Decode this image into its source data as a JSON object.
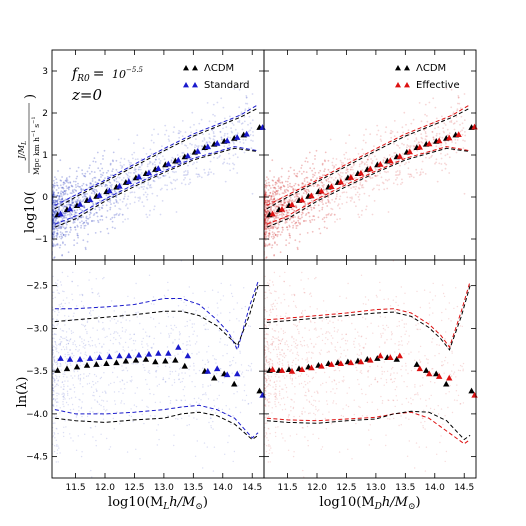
{
  "annotation": {
    "fr0_label": "f",
    "fr0_sub": "R0",
    "fr0_eq": "=",
    "fr0_value": "10",
    "fr0_exp": "−5.5",
    "z_label": "z=0"
  },
  "xlabels": {
    "left": "log10(M",
    "left_sub": "L",
    "left_rest": "h/M",
    "left_sun": "⊙",
    "left_close": ")",
    "right": "log10(M",
    "right_sub": "D",
    "right_rest": "h/M",
    "right_sun": "⊙",
    "right_close": ")"
  },
  "ylabels": {
    "top_prefix": "log10(",
    "top_num": "J/M",
    "top_num_sub": "L",
    "top_den": "Mpc km h",
    "top_den_exp": "−1",
    "top_den_s": "s",
    "top_den_s_exp": "−1",
    "top_suffix": ")",
    "bottom": "ln(λ)"
  },
  "chart_data": [
    {
      "id": "top-left",
      "type": "scatter",
      "xlim": [
        11.1,
        14.7
      ],
      "ylim": [
        -1.5,
        3.5
      ],
      "xticks": [
        11.5,
        12.0,
        12.5,
        13.0,
        13.5,
        14.0,
        14.5
      ],
      "yticks": [
        -1,
        0,
        1,
        2,
        3
      ],
      "ytick_labels": [
        "−1",
        "0",
        "1",
        "2",
        "3"
      ],
      "legend": [
        {
          "label": "ΛCDM",
          "color": "#000000"
        },
        {
          "label": "Standard",
          "color": "#1a1acc"
        }
      ],
      "cloud_color": "#2233bb",
      "series": [
        {
          "name": "ΛCDM",
          "color": "#000000",
          "x": [
            11.22,
            11.38,
            11.55,
            11.72,
            11.88,
            12.05,
            12.22,
            12.38,
            12.55,
            12.72,
            12.88,
            13.05,
            13.22,
            13.38,
            13.55,
            13.72,
            13.88,
            14.05,
            14.22,
            14.38,
            14.65
          ],
          "y": [
            -0.42,
            -0.3,
            -0.2,
            -0.08,
            0.02,
            0.13,
            0.24,
            0.35,
            0.46,
            0.56,
            0.66,
            0.77,
            0.86,
            0.96,
            1.07,
            1.18,
            1.26,
            1.33,
            1.4,
            1.48,
            1.66
          ]
        },
        {
          "name": "Standard",
          "color": "#1a1acc",
          "x": [
            11.22,
            11.38,
            11.55,
            11.72,
            11.88,
            12.05,
            12.22,
            12.38,
            12.55,
            12.72,
            12.88,
            13.05,
            13.22,
            13.38,
            13.55,
            13.72,
            13.88,
            14.05,
            14.22,
            14.38,
            14.65
          ],
          "y": [
            -0.4,
            -0.28,
            -0.17,
            -0.06,
            0.04,
            0.15,
            0.26,
            0.37,
            0.48,
            0.58,
            0.68,
            0.79,
            0.88,
            0.98,
            1.09,
            1.2,
            1.28,
            1.34,
            1.42,
            1.5,
            1.66
          ]
        }
      ],
      "bands": [
        {
          "color": "#1a1acc",
          "x": [
            11.15,
            11.5,
            12.0,
            12.5,
            13.0,
            13.5,
            14.0,
            14.3,
            14.6
          ],
          "y": [
            -0.2,
            0.05,
            0.4,
            0.78,
            1.15,
            1.5,
            1.78,
            1.95,
            2.2
          ]
        },
        {
          "color": "#000000",
          "x": [
            11.15,
            11.5,
            12.0,
            12.5,
            13.0,
            13.5,
            14.0,
            14.3,
            14.6
          ],
          "y": [
            -0.28,
            0.0,
            0.36,
            0.73,
            1.1,
            1.45,
            1.73,
            1.9,
            2.12
          ]
        },
        {
          "color": "#1a1acc",
          "x": [
            11.15,
            11.5,
            12.0,
            12.5,
            13.0,
            13.5,
            14.0,
            14.2,
            14.6
          ],
          "y": [
            -0.65,
            -0.45,
            -0.05,
            0.3,
            0.62,
            0.92,
            1.12,
            1.2,
            1.1
          ]
        },
        {
          "color": "#000000",
          "x": [
            11.15,
            11.5,
            12.0,
            12.5,
            13.0,
            13.5,
            14.0,
            14.2,
            14.6
          ],
          "y": [
            -0.72,
            -0.52,
            -0.1,
            0.25,
            0.58,
            0.88,
            1.08,
            1.16,
            1.08
          ]
        }
      ]
    },
    {
      "id": "top-right",
      "type": "scatter",
      "xlim": [
        11.1,
        14.7
      ],
      "ylim": [
        -1.5,
        3.5
      ],
      "xticks": [
        11.5,
        12.0,
        12.5,
        13.0,
        13.5,
        14.0,
        14.5
      ],
      "yticks": [
        -1,
        0,
        1,
        2,
        3
      ],
      "legend": [
        {
          "label": "ΛCDM",
          "color": "#000000"
        },
        {
          "label": "Effective",
          "color": "#dd1111"
        }
      ],
      "cloud_color": "#cc2222",
      "series": [
        {
          "name": "ΛCDM",
          "color": "#000000",
          "x": [
            11.22,
            11.38,
            11.55,
            11.72,
            11.88,
            12.05,
            12.22,
            12.38,
            12.55,
            12.72,
            12.88,
            13.05,
            13.22,
            13.38,
            13.55,
            13.72,
            13.88,
            14.05,
            14.22,
            14.38,
            14.65
          ],
          "y": [
            -0.42,
            -0.3,
            -0.2,
            -0.08,
            0.02,
            0.13,
            0.24,
            0.35,
            0.46,
            0.56,
            0.66,
            0.77,
            0.86,
            0.96,
            1.07,
            1.18,
            1.26,
            1.33,
            1.4,
            1.48,
            1.66
          ]
        },
        {
          "name": "Effective",
          "color": "#dd1111",
          "x": [
            11.22,
            11.38,
            11.55,
            11.72,
            11.88,
            12.05,
            12.22,
            12.38,
            12.55,
            12.72,
            12.88,
            13.05,
            13.22,
            13.38,
            13.55,
            13.72,
            13.88,
            14.05,
            14.22,
            14.38,
            14.65
          ],
          "y": [
            -0.4,
            -0.29,
            -0.18,
            -0.07,
            0.03,
            0.14,
            0.25,
            0.36,
            0.47,
            0.57,
            0.67,
            0.78,
            0.87,
            0.97,
            1.08,
            1.19,
            1.27,
            1.34,
            1.41,
            1.49,
            1.67
          ]
        }
      ],
      "bands": [
        {
          "color": "#dd1111",
          "x": [
            11.15,
            11.5,
            12.0,
            12.5,
            13.0,
            13.5,
            14.0,
            14.3,
            14.6
          ],
          "y": [
            -0.2,
            0.05,
            0.4,
            0.78,
            1.15,
            1.5,
            1.78,
            1.95,
            2.2
          ]
        },
        {
          "color": "#000000",
          "x": [
            11.15,
            11.5,
            12.0,
            12.5,
            13.0,
            13.5,
            14.0,
            14.3,
            14.6
          ],
          "y": [
            -0.28,
            0.0,
            0.36,
            0.73,
            1.1,
            1.45,
            1.73,
            1.9,
            2.12
          ]
        },
        {
          "color": "#dd1111",
          "x": [
            11.15,
            11.5,
            12.0,
            12.5,
            13.0,
            13.5,
            14.0,
            14.2,
            14.6
          ],
          "y": [
            -0.65,
            -0.45,
            -0.05,
            0.3,
            0.62,
            0.92,
            1.12,
            1.2,
            1.1
          ]
        },
        {
          "color": "#000000",
          "x": [
            11.15,
            11.5,
            12.0,
            12.5,
            13.0,
            13.5,
            14.0,
            14.2,
            14.6
          ],
          "y": [
            -0.72,
            -0.52,
            -0.1,
            0.25,
            0.58,
            0.88,
            1.08,
            1.16,
            1.08
          ]
        }
      ]
    },
    {
      "id": "bottom-left",
      "type": "scatter",
      "xlim": [
        11.1,
        14.7
      ],
      "ylim": [
        -4.75,
        -2.2
      ],
      "xticks": [
        11.5,
        12.0,
        12.5,
        13.0,
        13.5,
        14.0,
        14.5
      ],
      "xtick_labels": [
        "11.5",
        "12.0",
        "12.5",
        "13.0",
        "13.5",
        "14.0",
        "14.5"
      ],
      "yticks": [
        -4.5,
        -4.0,
        -3.5,
        -3.0,
        -2.5
      ],
      "ytick_labels": [
        "−4.5",
        "−4.0",
        "−3.5",
        "−3.0",
        "−2.5"
      ],
      "cloud_color": "#2233bb",
      "series": [
        {
          "name": "ΛCDM",
          "color": "#000000",
          "x": [
            11.22,
            11.38,
            11.55,
            11.72,
            11.88,
            12.05,
            12.22,
            12.38,
            12.55,
            12.72,
            12.88,
            13.05,
            13.22,
            13.38,
            13.72,
            13.88,
            14.05,
            14.22,
            14.65
          ],
          "y": [
            -3.49,
            -3.47,
            -3.45,
            -3.43,
            -3.42,
            -3.41,
            -3.4,
            -3.38,
            -3.37,
            -3.36,
            -3.39,
            -3.38,
            -3.37,
            -3.44,
            -3.5,
            -3.58,
            -3.53,
            -3.65,
            -3.73
          ]
        },
        {
          "name": "Standard",
          "color": "#1a1acc",
          "x": [
            11.22,
            11.38,
            11.55,
            11.72,
            11.88,
            12.05,
            12.22,
            12.38,
            12.55,
            12.72,
            12.88,
            13.05,
            13.22,
            13.38,
            13.72,
            13.88,
            14.05,
            14.22,
            14.65
          ],
          "y": [
            -3.35,
            -3.36,
            -3.36,
            -3.35,
            -3.34,
            -3.33,
            -3.32,
            -3.32,
            -3.31,
            -3.3,
            -3.29,
            -3.29,
            -3.22,
            -3.32,
            -3.5,
            -3.47,
            -3.54,
            -3.53,
            -3.78
          ]
        }
      ],
      "bands": [
        {
          "color": "#1a1acc",
          "x": [
            11.15,
            11.5,
            12.0,
            12.5,
            13.0,
            13.3,
            13.6,
            13.9,
            14.1,
            14.25,
            14.45,
            14.6
          ],
          "y": [
            -2.77,
            -2.77,
            -2.75,
            -2.72,
            -2.65,
            -2.65,
            -2.72,
            -2.9,
            -3.05,
            -3.25,
            -2.75,
            -2.45
          ]
        },
        {
          "color": "#000000",
          "x": [
            11.15,
            11.5,
            12.0,
            12.5,
            13.0,
            13.3,
            13.6,
            13.9,
            14.1,
            14.25,
            14.45,
            14.6
          ],
          "y": [
            -2.92,
            -2.9,
            -2.87,
            -2.84,
            -2.8,
            -2.8,
            -2.85,
            -2.97,
            -3.1,
            -3.2,
            -2.85,
            -2.5
          ]
        },
        {
          "color": "#1a1acc",
          "x": [
            11.15,
            11.5,
            12.0,
            12.5,
            13.0,
            13.3,
            13.6,
            13.9,
            14.2,
            14.5,
            14.6
          ],
          "y": [
            -3.95,
            -4.0,
            -4.0,
            -3.98,
            -3.95,
            -3.92,
            -3.9,
            -3.95,
            -4.05,
            -4.28,
            -4.22
          ]
        },
        {
          "color": "#000000",
          "x": [
            11.15,
            11.5,
            12.0,
            12.5,
            13.0,
            13.3,
            13.6,
            13.9,
            14.2,
            14.5,
            14.6
          ],
          "y": [
            -4.05,
            -4.08,
            -4.1,
            -4.07,
            -4.05,
            -4.0,
            -3.98,
            -4.02,
            -4.12,
            -4.3,
            -4.25
          ]
        }
      ]
    },
    {
      "id": "bottom-right",
      "type": "scatter",
      "xlim": [
        11.1,
        14.7
      ],
      "ylim": [
        -4.75,
        -2.2
      ],
      "xticks": [
        11.5,
        12.0,
        12.5,
        13.0,
        13.5,
        14.0,
        14.5
      ],
      "xtick_labels": [
        "11.5",
        "12.0",
        "12.5",
        "13.0",
        "13.5",
        "14.0",
        "14.5"
      ],
      "yticks": [
        -4.5,
        -4.0,
        -3.5,
        -3.0,
        -2.5
      ],
      "cloud_color": "#cc2222",
      "series": [
        {
          "name": "ΛCDM",
          "color": "#000000",
          "x": [
            11.22,
            11.38,
            11.55,
            11.72,
            11.88,
            12.05,
            12.22,
            12.38,
            12.55,
            12.72,
            12.88,
            13.05,
            13.22,
            13.38,
            13.72,
            13.88,
            14.05,
            14.22,
            14.65
          ],
          "y": [
            -3.49,
            -3.49,
            -3.48,
            -3.47,
            -3.45,
            -3.43,
            -3.41,
            -3.4,
            -3.39,
            -3.38,
            -3.36,
            -3.35,
            -3.34,
            -3.36,
            -3.42,
            -3.49,
            -3.53,
            -3.65,
            -3.73
          ]
        },
        {
          "name": "Effective",
          "color": "#dd1111",
          "x": [
            11.22,
            11.38,
            11.55,
            11.72,
            11.88,
            12.05,
            12.22,
            12.38,
            12.55,
            12.72,
            12.88,
            13.05,
            13.22,
            13.38,
            13.72,
            13.88,
            14.05,
            14.22,
            14.65
          ],
          "y": [
            -3.48,
            -3.49,
            -3.5,
            -3.48,
            -3.46,
            -3.44,
            -3.42,
            -3.41,
            -3.4,
            -3.39,
            -3.37,
            -3.32,
            -3.34,
            -3.32,
            -3.47,
            -3.53,
            -3.56,
            -3.58,
            -3.78
          ]
        }
      ],
      "bands": [
        {
          "color": "#dd1111",
          "x": [
            11.15,
            11.5,
            12.0,
            12.5,
            13.0,
            13.3,
            13.6,
            13.9,
            14.1,
            14.25,
            14.45,
            14.6
          ],
          "y": [
            -2.9,
            -2.88,
            -2.85,
            -2.82,
            -2.78,
            -2.77,
            -2.82,
            -2.95,
            -3.08,
            -3.22,
            -2.8,
            -2.45
          ]
        },
        {
          "color": "#000000",
          "x": [
            11.15,
            11.5,
            12.0,
            12.5,
            13.0,
            13.3,
            13.6,
            13.9,
            14.1,
            14.25,
            14.45,
            14.6
          ],
          "y": [
            -2.93,
            -2.91,
            -2.88,
            -2.85,
            -2.82,
            -2.81,
            -2.86,
            -2.99,
            -3.12,
            -3.25,
            -2.86,
            -2.5
          ]
        },
        {
          "color": "#dd1111",
          "x": [
            11.15,
            11.5,
            12.0,
            12.5,
            13.0,
            13.3,
            13.6,
            13.9,
            14.2,
            14.5,
            14.6
          ],
          "y": [
            -4.05,
            -4.07,
            -4.08,
            -4.06,
            -4.04,
            -4.0,
            -3.98,
            -4.05,
            -4.2,
            -4.35,
            -4.3
          ]
        },
        {
          "color": "#000000",
          "x": [
            11.15,
            11.5,
            12.0,
            12.5,
            13.0,
            13.3,
            13.6,
            13.9,
            14.2,
            14.5,
            14.6
          ],
          "y": [
            -4.08,
            -4.1,
            -4.11,
            -4.08,
            -4.06,
            -4.0,
            -3.97,
            -3.98,
            -4.08,
            -4.3,
            -4.25
          ]
        }
      ]
    }
  ]
}
